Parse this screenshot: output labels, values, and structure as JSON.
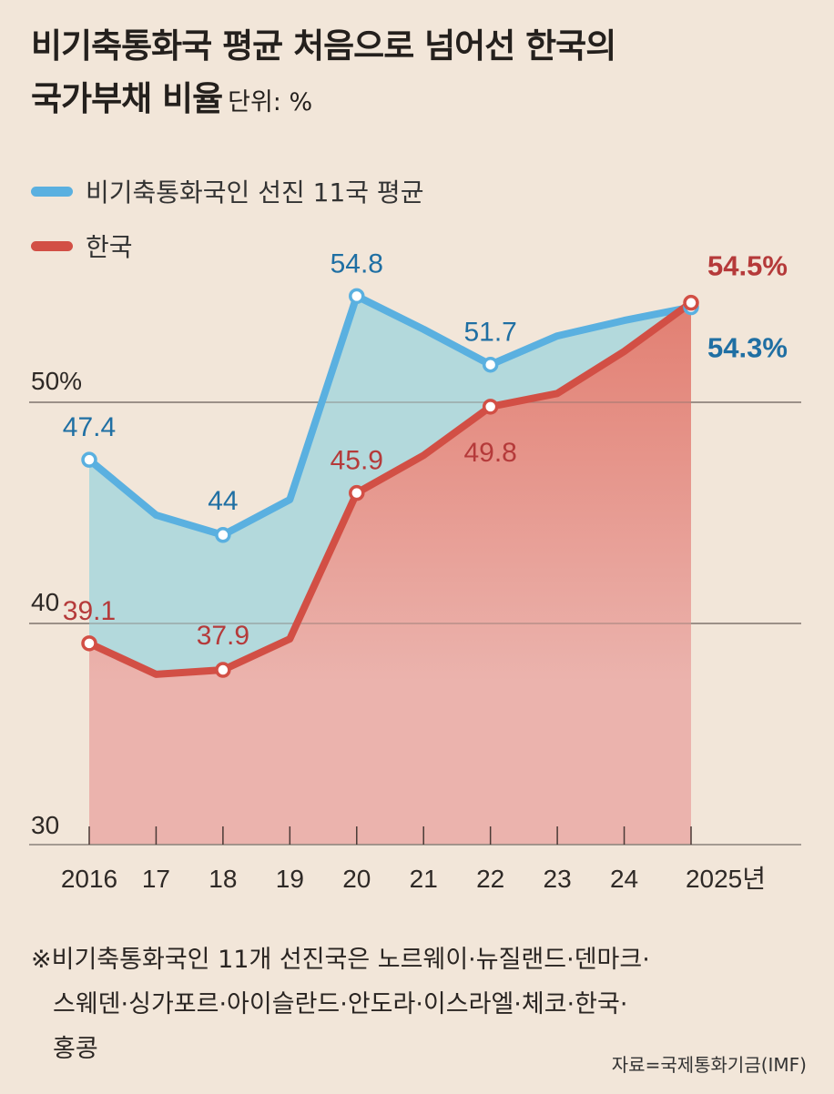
{
  "title": {
    "line1": "비기축통화국 평균 처음으로 넘어선 한국의",
    "line2": "국가부채 비율",
    "unit": "단위: %"
  },
  "colors": {
    "background": "#f2e6d9",
    "blue_line": "#5ab0e0",
    "blue_fill": "#b3d9dc",
    "blue_label": "#1f6fa3",
    "red_line": "#d24f45",
    "red_fill_top": "#e27f72",
    "red_fill_bottom": "#ebb3ad",
    "red_label": "#b53a3a"
  },
  "chart_data": {
    "type": "area",
    "title": "비기축통화국 평균 처음으로 넘어선 한국의 국가부채 비율",
    "unit": "%",
    "x": [
      "2016",
      "17",
      "18",
      "19",
      "20",
      "21",
      "22",
      "23",
      "24",
      "2025년"
    ],
    "ylim": [
      30,
      56
    ],
    "yticks": [
      {
        "value": 30,
        "label": "30"
      },
      {
        "value": 40,
        "label": "40"
      },
      {
        "value": 50,
        "label": "50%"
      }
    ],
    "grid": true,
    "legend_position": "top-left",
    "series": [
      {
        "name": "비기축통화국인 선진 11국 평균",
        "color": "#5ab0e0",
        "values": [
          47.4,
          44.9,
          44.0,
          45.6,
          54.8,
          53.3,
          51.7,
          53.0,
          53.7,
          54.3
        ],
        "labels": [
          {
            "index": 0,
            "text": "47.4"
          },
          {
            "index": 2,
            "text": "44"
          },
          {
            "index": 4,
            "text": "54.8"
          },
          {
            "index": 6,
            "text": "51.7"
          },
          {
            "index": 9,
            "text": "54.3%"
          }
        ]
      },
      {
        "name": "한국",
        "color": "#d24f45",
        "values": [
          39.1,
          37.7,
          37.9,
          39.3,
          45.9,
          47.6,
          49.8,
          50.4,
          52.3,
          54.5
        ],
        "labels": [
          {
            "index": 0,
            "text": "39.1"
          },
          {
            "index": 2,
            "text": "37.9"
          },
          {
            "index": 4,
            "text": "45.9"
          },
          {
            "index": 6,
            "text": "49.8"
          },
          {
            "index": 9,
            "text": "54.5%"
          }
        ]
      }
    ]
  },
  "legend": [
    {
      "label": "비기축통화국인 선진 11국 평균",
      "color": "#5ab0e0"
    },
    {
      "label": "한국",
      "color": "#d24f45"
    }
  ],
  "note": {
    "line1": "※비기축통화국인 11개 선진국은 노르웨이·뉴질랜드·덴마크·",
    "line2": "스웨덴·싱가포르·아이슬란드·안도라·이스라엘·체코·한국·",
    "line3": "홍콩"
  },
  "source": "자료=국제통화기금(IMF)"
}
